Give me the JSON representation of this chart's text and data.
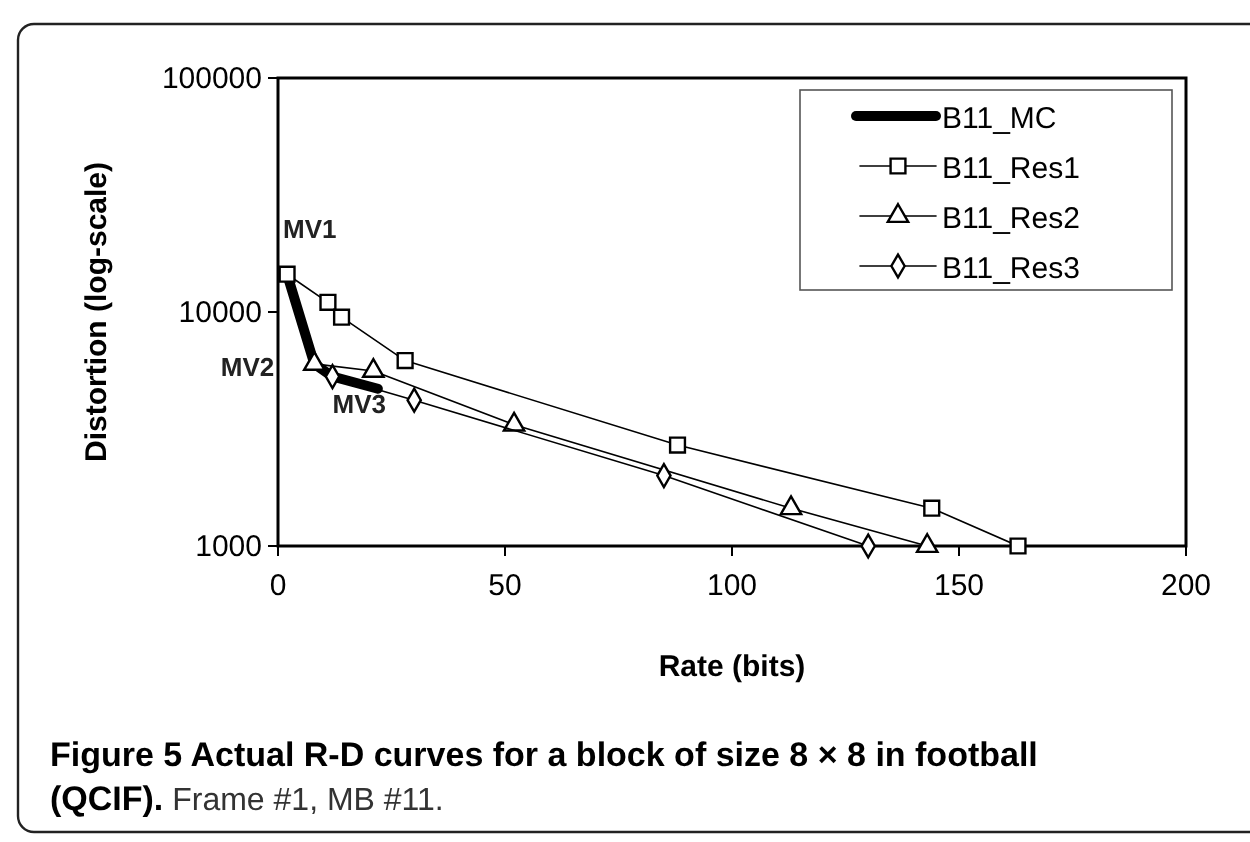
{
  "chart_data": {
    "type": "line",
    "title": "Figure 5 Actual R-D curves for a block of size 8 × 8 in football (QCIF).",
    "subtitle": "Frame #1, MB #11.",
    "xlabel": "Rate (bits)",
    "ylabel": "Distortion (log-scale)",
    "log": "y",
    "xlim": [
      0,
      200
    ],
    "xticks": [
      0,
      50,
      100,
      150,
      200
    ],
    "ylim": [
      1000,
      100000
    ],
    "yticks": [
      1000,
      10000,
      100000
    ],
    "grid": false,
    "legend": "top right",
    "series": [
      {
        "name": "B11_MC",
        "color": "#000000",
        "x": [
          2,
          8,
          12,
          22
        ],
        "values": [
          14500,
          6000,
          5300,
          4700
        ]
      },
      {
        "name": "B11_Res1",
        "color": "#000000",
        "marker": "square",
        "x": [
          2,
          11,
          14,
          28,
          88,
          144,
          163
        ],
        "values": [
          14500,
          11000,
          9500,
          6200,
          2700,
          1450,
          1000
        ]
      },
      {
        "name": "B11_Res2",
        "color": "#000000",
        "marker": "triangle",
        "x": [
          8,
          21,
          52,
          113,
          143
        ],
        "values": [
          6000,
          5600,
          3300,
          1450,
          1000
        ]
      },
      {
        "name": "B11_Res3",
        "color": "#000000",
        "marker": "diamond",
        "x": [
          12,
          30,
          85,
          130
        ],
        "values": [
          5300,
          4200,
          2000,
          1000
        ]
      }
    ],
    "annotations": [
      {
        "text": "MV1",
        "x": 2,
        "y": 14500
      },
      {
        "text": "MV2",
        "x": 8,
        "y": 6000
      },
      {
        "text": "MV3",
        "x": 12,
        "y": 5300
      }
    ]
  }
}
